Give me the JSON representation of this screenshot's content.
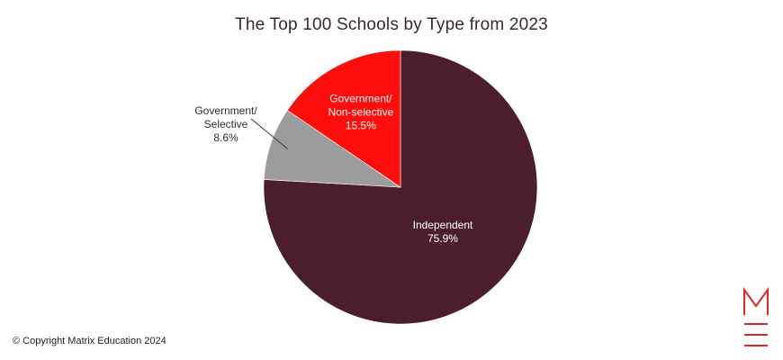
{
  "colors": {
    "independent": "#4a1e2a",
    "government_non_selective": "#fe0d0d",
    "government_selective": "#9c9c9c",
    "title_text": "#3a2a2e",
    "logo": "#d42a2a"
  },
  "chart_data": {
    "type": "pie",
    "title": "The Top 100 Schools by Type from 2023",
    "slices": [
      {
        "name": "Independent",
        "value": 75.9,
        "value_label": "75.9%",
        "label_lines": [
          "Independent"
        ],
        "color": "#4a1e2a",
        "label_color": "#ffffff",
        "label_placement": "inside"
      },
      {
        "name": "Government/ Selective",
        "value": 8.6,
        "value_label": "8.6%",
        "label_lines": [
          "Government/",
          "Selective"
        ],
        "color": "#9c9c9c",
        "label_color": "#3a2a2e",
        "label_placement": "outside-left"
      },
      {
        "name": "Government/ Non-selective",
        "value": 15.5,
        "value_label": "15.5%",
        "label_lines": [
          "Government/",
          "Non-selective"
        ],
        "color": "#fe0d0d",
        "label_color": "#ffffff",
        "label_placement": "inside"
      }
    ],
    "start_angle": "12 o'clock",
    "direction": "clockwise",
    "legend": "none"
  },
  "footer": {
    "copyright": "© Copyright Matrix Education 2024"
  },
  "logo": {
    "icon": "matrix-m-logo-icon"
  }
}
